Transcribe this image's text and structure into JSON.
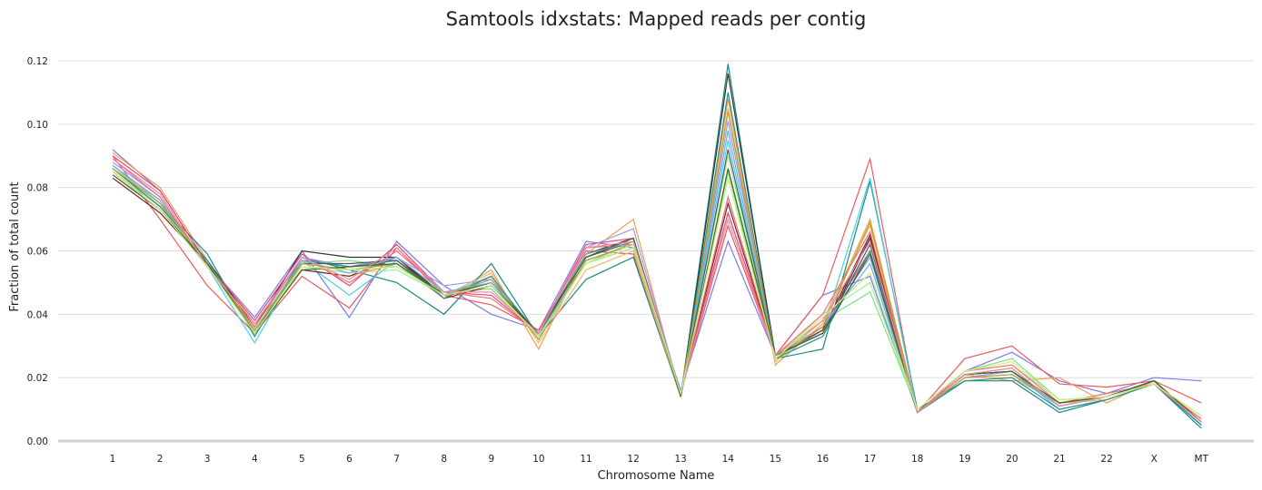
{
  "chart_data": {
    "type": "line",
    "title": "Samtools idxstats: Mapped reads per contig",
    "xlabel": "Chromosome Name",
    "ylabel": "Fraction of total count",
    "categories": [
      "1",
      "2",
      "3",
      "4",
      "5",
      "6",
      "7",
      "8",
      "9",
      "10",
      "11",
      "12",
      "13",
      "14",
      "15",
      "16",
      "17",
      "18",
      "19",
      "20",
      "21",
      "22",
      "X",
      "MT"
    ],
    "ylim": [
      0,
      0.12
    ],
    "yticks": [
      "0.00",
      "0.02",
      "0.04",
      "0.06",
      "0.08",
      "0.10",
      "0.12"
    ],
    "grid": true,
    "legend": "none",
    "series": [
      {
        "color": "#7b7be8",
        "values": [
          0.092,
          0.079,
          0.056,
          0.039,
          0.06,
          0.039,
          0.063,
          0.049,
          0.04,
          0.035,
          0.063,
          0.061,
          0.016,
          0.063,
          0.027,
          0.046,
          0.052,
          0.009,
          0.022,
          0.028,
          0.019,
          0.015,
          0.02,
          0.019
        ]
      },
      {
        "color": "#e85c5c",
        "values": [
          0.09,
          0.07,
          0.049,
          0.034,
          0.052,
          0.042,
          0.061,
          0.046,
          0.043,
          0.035,
          0.06,
          0.059,
          0.015,
          0.068,
          0.027,
          0.046,
          0.089,
          0.009,
          0.026,
          0.03,
          0.018,
          0.017,
          0.019,
          0.012
        ]
      },
      {
        "color": "#f0a050",
        "values": [
          0.091,
          0.08,
          0.057,
          0.037,
          0.054,
          0.052,
          0.056,
          0.045,
          0.054,
          0.029,
          0.059,
          0.07,
          0.014,
          0.108,
          0.024,
          0.037,
          0.07,
          0.009,
          0.021,
          0.019,
          0.02,
          0.012,
          0.019,
          0.006
        ]
      },
      {
        "color": "#1a8a80",
        "values": [
          0.087,
          0.075,
          0.059,
          0.033,
          0.058,
          0.054,
          0.05,
          0.04,
          0.056,
          0.033,
          0.051,
          0.058,
          0.014,
          0.119,
          0.026,
          0.029,
          0.082,
          0.01,
          0.019,
          0.019,
          0.009,
          0.013,
          0.018,
          0.004
        ]
      },
      {
        "color": "#333333",
        "values": [
          0.086,
          0.074,
          0.057,
          0.036,
          0.06,
          0.058,
          0.058,
          0.046,
          0.05,
          0.034,
          0.059,
          0.064,
          0.014,
          0.116,
          0.027,
          0.034,
          0.064,
          0.009,
          0.021,
          0.022,
          0.012,
          0.014,
          0.019,
          0.006
        ]
      },
      {
        "color": "#80e080",
        "values": [
          0.084,
          0.073,
          0.055,
          0.034,
          0.056,
          0.057,
          0.055,
          0.047,
          0.048,
          0.033,
          0.056,
          0.063,
          0.015,
          0.085,
          0.026,
          0.038,
          0.047,
          0.01,
          0.022,
          0.026,
          0.013,
          0.014,
          0.018,
          0.008
        ]
      },
      {
        "color": "#4ad0e8",
        "values": [
          0.087,
          0.075,
          0.055,
          0.031,
          0.057,
          0.046,
          0.057,
          0.046,
          0.052,
          0.032,
          0.057,
          0.062,
          0.015,
          0.095,
          0.026,
          0.035,
          0.083,
          0.009,
          0.02,
          0.022,
          0.01,
          0.013,
          0.018,
          0.006
        ]
      },
      {
        "color": "#7a2020",
        "values": [
          0.083,
          0.072,
          0.056,
          0.034,
          0.054,
          0.052,
          0.058,
          0.045,
          0.049,
          0.034,
          0.058,
          0.064,
          0.015,
          0.075,
          0.027,
          0.035,
          0.065,
          0.009,
          0.021,
          0.022,
          0.011,
          0.014,
          0.018,
          0.005
        ]
      },
      {
        "color": "#e04878",
        "values": [
          0.09,
          0.079,
          0.056,
          0.038,
          0.059,
          0.049,
          0.062,
          0.047,
          0.046,
          0.034,
          0.062,
          0.064,
          0.015,
          0.072,
          0.027,
          0.036,
          0.06,
          0.009,
          0.021,
          0.023,
          0.011,
          0.014,
          0.018,
          0.006
        ]
      },
      {
        "color": "#9a9af0",
        "values": [
          0.088,
          0.077,
          0.055,
          0.036,
          0.058,
          0.055,
          0.058,
          0.049,
          0.051,
          0.034,
          0.061,
          0.067,
          0.015,
          0.101,
          0.027,
          0.036,
          0.058,
          0.009,
          0.02,
          0.022,
          0.011,
          0.014,
          0.018,
          0.006
        ]
      },
      {
        "color": "#f4b470",
        "values": [
          0.086,
          0.076,
          0.055,
          0.035,
          0.056,
          0.054,
          0.056,
          0.046,
          0.053,
          0.031,
          0.054,
          0.06,
          0.014,
          0.105,
          0.025,
          0.038,
          0.068,
          0.009,
          0.02,
          0.02,
          0.012,
          0.013,
          0.018,
          0.007
        ]
      },
      {
        "color": "#a0e8a0",
        "values": [
          0.085,
          0.074,
          0.056,
          0.035,
          0.055,
          0.053,
          0.054,
          0.046,
          0.049,
          0.033,
          0.056,
          0.061,
          0.015,
          0.09,
          0.026,
          0.04,
          0.05,
          0.01,
          0.022,
          0.024,
          0.013,
          0.014,
          0.018,
          0.008
        ]
      },
      {
        "color": "#2e9090",
        "values": [
          0.086,
          0.074,
          0.057,
          0.034,
          0.057,
          0.055,
          0.057,
          0.045,
          0.052,
          0.033,
          0.057,
          0.062,
          0.014,
          0.11,
          0.026,
          0.033,
          0.06,
          0.009,
          0.019,
          0.02,
          0.01,
          0.013,
          0.018,
          0.005
        ]
      },
      {
        "color": "#555555",
        "values": [
          0.085,
          0.073,
          0.056,
          0.035,
          0.056,
          0.056,
          0.057,
          0.046,
          0.05,
          0.034,
          0.058,
          0.063,
          0.014,
          0.092,
          0.027,
          0.034,
          0.062,
          0.009,
          0.021,
          0.022,
          0.012,
          0.014,
          0.019,
          0.006
        ]
      },
      {
        "color": "#f07070",
        "values": [
          0.089,
          0.077,
          0.055,
          0.036,
          0.058,
          0.05,
          0.06,
          0.047,
          0.045,
          0.034,
          0.061,
          0.062,
          0.015,
          0.077,
          0.027,
          0.04,
          0.066,
          0.009,
          0.022,
          0.024,
          0.012,
          0.015,
          0.018,
          0.007
        ]
      },
      {
        "color": "#6ab0e8",
        "values": [
          0.087,
          0.076,
          0.055,
          0.035,
          0.057,
          0.053,
          0.058,
          0.047,
          0.05,
          0.033,
          0.059,
          0.063,
          0.015,
          0.098,
          0.026,
          0.036,
          0.056,
          0.009,
          0.02,
          0.021,
          0.011,
          0.014,
          0.018,
          0.006
        ]
      },
      {
        "color": "#c0a030",
        "values": [
          0.086,
          0.075,
          0.056,
          0.035,
          0.056,
          0.054,
          0.056,
          0.046,
          0.051,
          0.032,
          0.057,
          0.062,
          0.014,
          0.104,
          0.026,
          0.036,
          0.069,
          0.009,
          0.02,
          0.021,
          0.012,
          0.014,
          0.018,
          0.006
        ]
      },
      {
        "color": "#3a6a2a",
        "values": [
          0.084,
          0.073,
          0.056,
          0.034,
          0.054,
          0.055,
          0.056,
          0.046,
          0.049,
          0.034,
          0.058,
          0.064,
          0.014,
          0.086,
          0.027,
          0.034,
          0.059,
          0.009,
          0.021,
          0.022,
          0.012,
          0.014,
          0.019,
          0.006
        ]
      },
      {
        "color": "#f08aa8",
        "values": [
          0.089,
          0.078,
          0.055,
          0.037,
          0.058,
          0.051,
          0.061,
          0.047,
          0.047,
          0.034,
          0.061,
          0.063,
          0.015,
          0.07,
          0.027,
          0.038,
          0.063,
          0.009,
          0.021,
          0.023,
          0.011,
          0.014,
          0.018,
          0.006
        ]
      },
      {
        "color": "#c8f080",
        "values": [
          0.085,
          0.073,
          0.055,
          0.034,
          0.055,
          0.054,
          0.055,
          0.046,
          0.049,
          0.033,
          0.056,
          0.062,
          0.015,
          0.083,
          0.026,
          0.039,
          0.053,
          0.01,
          0.022,
          0.025,
          0.013,
          0.014,
          0.018,
          0.008
        ]
      }
    ]
  }
}
